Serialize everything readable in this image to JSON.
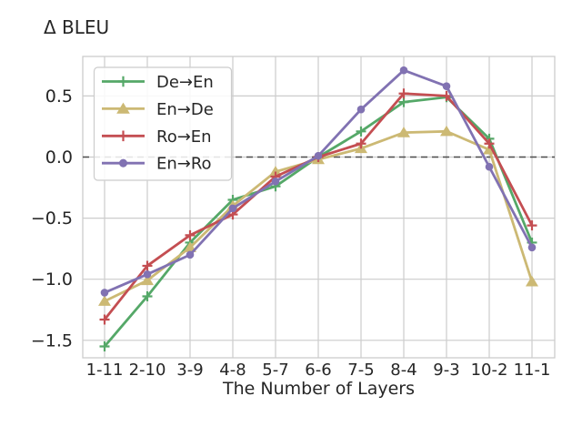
{
  "title": "Δ BLEU",
  "colors": {
    "background": "#ffffff",
    "grid": "#cccccc",
    "spine": "#cccccc",
    "text": "#262626",
    "zero_line": "#4d4d4d",
    "legend_border": "#cccccc",
    "series_green": "#55a868",
    "series_tan": "#ccb974",
    "series_red": "#c44e52",
    "series_purple": "#8172b2"
  },
  "chart_data": {
    "type": "line",
    "title": "Δ BLEU",
    "xlabel": "The Number of Layers",
    "ylabel": "",
    "categories": [
      "1-11",
      "2-10",
      "3-9",
      "4-8",
      "5-7",
      "6-6",
      "7-5",
      "8-4",
      "9-3",
      "10-2",
      "11-1"
    ],
    "yticks": [
      0.5,
      0.0,
      -0.5,
      -1.0,
      -1.5
    ],
    "ytick_labels": [
      "0.5",
      "0.0",
      "−0.5",
      "−1.0",
      "−1.5"
    ],
    "ylim": [
      -1.64,
      0.82
    ],
    "grid": true,
    "zero_line_dashed": true,
    "legend_position": "upper left",
    "series": [
      {
        "name": "De→En",
        "color": "#55a868",
        "marker": "plus",
        "values": [
          -1.55,
          -1.14,
          -0.7,
          -0.35,
          -0.24,
          0.0,
          0.21,
          0.45,
          0.49,
          0.15,
          -0.7
        ]
      },
      {
        "name": "En→De",
        "color": "#ccb974",
        "marker": "triangle",
        "values": [
          -1.18,
          -1.01,
          -0.74,
          -0.4,
          -0.12,
          -0.02,
          0.07,
          0.2,
          0.21,
          0.06,
          -1.02
        ]
      },
      {
        "name": "Ro→En",
        "color": "#c44e52",
        "marker": "plus",
        "values": [
          -1.33,
          -0.89,
          -0.64,
          -0.47,
          -0.16,
          0.0,
          0.11,
          0.52,
          0.5,
          0.11,
          -0.56
        ]
      },
      {
        "name": "En→Ro",
        "color": "#8172b2",
        "marker": "circle",
        "values": [
          -1.11,
          -0.96,
          -0.8,
          -0.42,
          -0.2,
          0.01,
          0.39,
          0.71,
          0.58,
          -0.08,
          -0.74
        ]
      }
    ]
  }
}
